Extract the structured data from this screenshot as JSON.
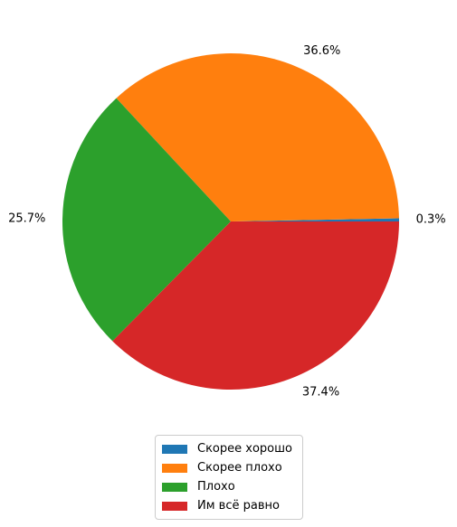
{
  "chart_data": {
    "type": "pie",
    "categories": [
      "Скорее хорошо",
      "Скорее плохо",
      "Плохо",
      "Им всё равно"
    ],
    "values": [
      0.3,
      36.6,
      25.7,
      37.4
    ],
    "value_labels": [
      "0.3%",
      "36.6%",
      "25.7%",
      "37.4%"
    ],
    "colors": [
      "#1f77b4",
      "#ff7f0e",
      "#2ca02c",
      "#d62728"
    ],
    "start_angle_deg": 0,
    "direction": "counterclockwise",
    "legend_position": "bottom-center"
  }
}
